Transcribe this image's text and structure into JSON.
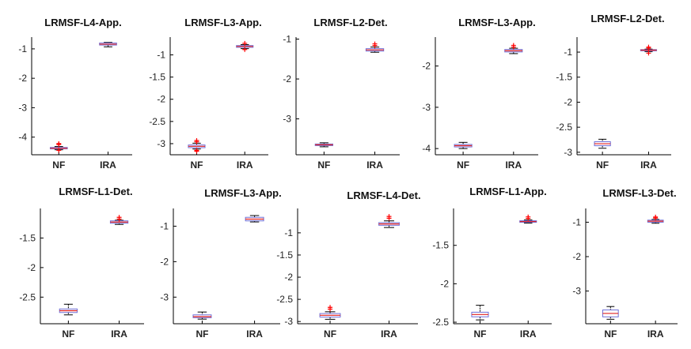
{
  "chart_data": [
    {
      "type": "box",
      "title": "LRMSF-L4-App.",
      "categories": [
        "NF",
        "IRA"
      ],
      "ylim": [
        -4.6,
        -0.6
      ],
      "yticks": [
        -4,
        -3,
        -2,
        -1
      ],
      "boxes": [
        {
          "whislo": -4.43,
          "q1": -4.4,
          "med": -4.38,
          "q3": -4.35,
          "whishi": -4.32,
          "outliers": [
            -4.25,
            -4.22,
            -4.45
          ]
        },
        {
          "whislo": -0.93,
          "q1": -0.87,
          "med": -0.84,
          "q3": -0.8,
          "whishi": -0.78,
          "outliers": []
        }
      ]
    },
    {
      "type": "box",
      "title": "LRMSF-L3-App.",
      "categories": [
        "NF",
        "IRA"
      ],
      "ylim": [
        -3.25,
        -0.6
      ],
      "yticks": [
        -3,
        -2.5,
        -2,
        -1.5,
        -1
      ],
      "boxes": [
        {
          "whislo": -3.12,
          "q1": -3.09,
          "med": -3.06,
          "q3": -3.03,
          "whishi": -2.99,
          "outliers": [
            -2.96,
            -2.93,
            -3.15,
            -3.17
          ]
        },
        {
          "whislo": -0.86,
          "q1": -0.83,
          "med": -0.81,
          "q3": -0.79,
          "whishi": -0.77,
          "outliers": [
            -0.74,
            -0.88
          ]
        }
      ]
    },
    {
      "type": "box",
      "title": "LRMSF-L2-Det.",
      "categories": [
        "NF",
        "IRA"
      ],
      "ylim": [
        -3.9,
        -0.95
      ],
      "yticks": [
        -3,
        -2,
        -1
      ],
      "boxes": [
        {
          "whislo": -3.7,
          "q1": -3.67,
          "med": -3.65,
          "q3": -3.63,
          "whishi": -3.6,
          "outliers": []
        },
        {
          "whislo": -1.33,
          "q1": -1.3,
          "med": -1.27,
          "q3": -1.24,
          "whishi": -1.2,
          "outliers": [
            -1.12,
            -1.16
          ]
        }
      ]
    },
    {
      "type": "box",
      "title": "LRMSF-L3-App.",
      "categories": [
        "NF",
        "IRA"
      ],
      "ylim": [
        -4.15,
        -1.3
      ],
      "yticks": [
        -4,
        -3,
        -2
      ],
      "boxes": [
        {
          "whislo": -4.0,
          "q1": -3.96,
          "med": -3.93,
          "q3": -3.9,
          "whishi": -3.85,
          "outliers": []
        },
        {
          "whislo": -1.7,
          "q1": -1.66,
          "med": -1.63,
          "q3": -1.6,
          "whishi": -1.57,
          "outliers": [
            -1.5,
            -1.54
          ]
        }
      ]
    },
    {
      "type": "box",
      "title": "LRMSF-L2-Det.",
      "categories": [
        "NF",
        "IRA"
      ],
      "ylim": [
        -3.05,
        -0.7
      ],
      "yticks": [
        -3,
        -2.5,
        -2,
        -1.5,
        -1
      ],
      "boxes": [
        {
          "whislo": -2.92,
          "q1": -2.87,
          "med": -2.83,
          "q3": -2.79,
          "whishi": -2.74,
          "outliers": []
        },
        {
          "whislo": -0.99,
          "q1": -0.97,
          "med": -0.96,
          "q3": -0.95,
          "whishi": -0.94,
          "outliers": [
            -0.9,
            -0.92,
            -1.02
          ]
        }
      ]
    },
    {
      "type": "box",
      "title": "LRMSF-L1-Det.",
      "categories": [
        "NF",
        "IRA"
      ],
      "ylim": [
        -2.95,
        -1.0
      ],
      "yticks": [
        -2.5,
        -2,
        -1.5
      ],
      "boxes": [
        {
          "whislo": -2.8,
          "q1": -2.76,
          "med": -2.73,
          "q3": -2.7,
          "whishi": -2.62,
          "outliers": []
        },
        {
          "whislo": -1.27,
          "q1": -1.25,
          "med": -1.23,
          "q3": -1.21,
          "whishi": -1.2,
          "outliers": [
            -1.15,
            -1.18
          ]
        }
      ]
    },
    {
      "type": "box",
      "title": "LRMSF-L3-App.",
      "categories": [
        "NF",
        "IRA"
      ],
      "ylim": [
        -3.75,
        -0.5
      ],
      "yticks": [
        -3,
        -2,
        -1
      ],
      "boxes": [
        {
          "whislo": -3.62,
          "q1": -3.58,
          "med": -3.55,
          "q3": -3.5,
          "whishi": -3.42,
          "outliers": []
        },
        {
          "whislo": -0.88,
          "q1": -0.85,
          "med": -0.8,
          "q3": -0.75,
          "whishi": -0.7,
          "outliers": []
        }
      ]
    },
    {
      "type": "box",
      "title": "LRMSF-L4-Det.",
      "categories": [
        "NF",
        "IRA"
      ],
      "ylim": [
        -3.05,
        -0.45
      ],
      "yticks": [
        -3,
        -2.5,
        -2,
        -1.5,
        -1
      ],
      "boxes": [
        {
          "whislo": -2.95,
          "q1": -2.9,
          "med": -2.86,
          "q3": -2.82,
          "whishi": -2.78,
          "outliers": [
            -2.68,
            -2.72
          ]
        },
        {
          "whislo": -0.88,
          "q1": -0.83,
          "med": -0.8,
          "q3": -0.77,
          "whishi": -0.73,
          "outliers": [
            -0.63,
            -0.67
          ]
        }
      ]
    },
    {
      "type": "box",
      "title": "LRMSF-L1-App.",
      "categories": [
        "NF",
        "IRA"
      ],
      "ylim": [
        -2.52,
        -1.02
      ],
      "yticks": [
        -2.5,
        -2,
        -1.5
      ],
      "boxes": [
        {
          "whislo": -2.47,
          "q1": -2.43,
          "med": -2.4,
          "q3": -2.37,
          "whishi": -2.28,
          "outliers": []
        },
        {
          "whislo": -1.21,
          "q1": -1.2,
          "med": -1.19,
          "q3": -1.18,
          "whishi": -1.17,
          "outliers": [
            -1.13,
            -1.15
          ]
        }
      ]
    },
    {
      "type": "box",
      "title": "LRMSF-L3-Det.",
      "categories": [
        "NF",
        "IRA"
      ],
      "ylim": [
        -3.95,
        -0.6
      ],
      "yticks": [
        -3,
        -2,
        -1
      ],
      "boxes": [
        {
          "whislo": -3.82,
          "q1": -3.75,
          "med": -3.65,
          "q3": -3.55,
          "whishi": -3.45,
          "outliers": []
        },
        {
          "whislo": -1.03,
          "q1": -1.0,
          "med": -0.97,
          "q3": -0.94,
          "whishi": -0.92,
          "outliers": [
            -0.85,
            -0.88
          ]
        }
      ]
    }
  ],
  "colors": {
    "box": "#6f6fd8",
    "median": "#e02020",
    "whisker": "#000000",
    "outlier": "#ff0000"
  }
}
